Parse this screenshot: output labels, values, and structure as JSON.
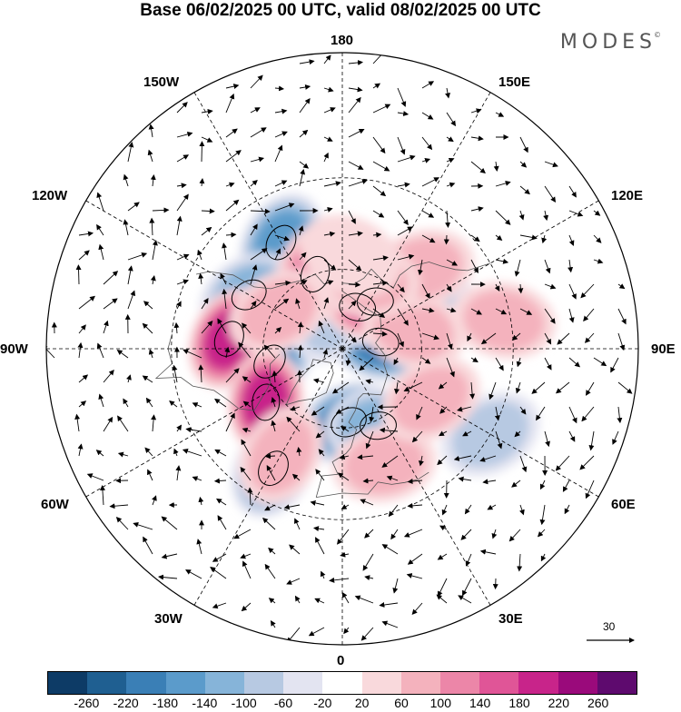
{
  "header": {
    "title": "Base 06/02/2025 00 UTC, valid 08/02/2025 00 UTC",
    "brand": "MODES",
    "brand_mark": "©"
  },
  "map": {
    "projection": "north-polar-stereographic",
    "longitude_labels": [
      "180",
      "150E",
      "120E",
      "90E",
      "60E",
      "30E",
      "0",
      "30W",
      "60W",
      "90W",
      "120W",
      "150W"
    ],
    "wind_reference": {
      "value": "30"
    }
  },
  "colorbar": {
    "colors": [
      "#0d3b66",
      "#1f5f91",
      "#3a7fb6",
      "#5b9bcb",
      "#86b4d9",
      "#b7c9e2",
      "#e3e4f1",
      "#ffffff",
      "#f9d9dc",
      "#f4b2bd",
      "#ec86a8",
      "#e05597",
      "#c8248a",
      "#9a0a7b",
      "#5e0a6e"
    ],
    "tick_labels": [
      "-260",
      "-220",
      "-180",
      "-140",
      "-100",
      "-60",
      "-20",
      "20",
      "60",
      "100",
      "140",
      "180",
      "220",
      "260"
    ],
    "palette": {
      "negative": "#3a7fb6",
      "positive": "#e05597",
      "neutral": "#ffffff"
    }
  },
  "chart_data": {
    "type": "heatmap",
    "title": "Base 06/02/2025 00 UTC, valid 08/02/2025 00 UTC",
    "levels": [
      -260,
      -220,
      -180,
      -140,
      -100,
      -60,
      -20,
      20,
      60,
      100,
      140,
      180,
      220,
      260
    ],
    "positive_centers": [
      {
        "lon": -95,
        "lat": 48,
        "value": 200
      },
      {
        "lon": -55,
        "lat": 55,
        "value": 200
      },
      {
        "lon": 145,
        "lat": 68,
        "value": 140
      },
      {
        "lon": -160,
        "lat": 60,
        "value": 100
      },
      {
        "lon": 105,
        "lat": 62,
        "value": 60
      },
      {
        "lon": 135,
        "lat": 48,
        "value": 60
      },
      {
        "lon": 20,
        "lat": 45,
        "value": 60
      },
      {
        "lon": -30,
        "lat": 45,
        "value": 60
      },
      {
        "lon": 60,
        "lat": 52,
        "value": 60
      },
      {
        "lon": 160,
        "lat": 62,
        "value": 60
      },
      {
        "lon": 175,
        "lat": 55,
        "value": 20
      },
      {
        "lon": -120,
        "lat": 62,
        "value": 60
      },
      {
        "lon": 100,
        "lat": 32,
        "value": 60
      }
    ],
    "negative_centers": [
      {
        "lon": -150,
        "lat": 45,
        "value": -140
      },
      {
        "lon": -80,
        "lat": 62,
        "value": -140
      },
      {
        "lon": -30,
        "lat": 40,
        "value": -140
      },
      {
        "lon": 5,
        "lat": 62,
        "value": -180
      },
      {
        "lon": 100,
        "lat": 75,
        "value": -180
      },
      {
        "lon": 160,
        "lat": 73,
        "value": -100
      },
      {
        "lon": -120,
        "lat": 50,
        "value": -100
      },
      {
        "lon": 25,
        "lat": 58,
        "value": -100
      },
      {
        "lon": 125,
        "lat": 55,
        "value": -60
      },
      {
        "lon": 60,
        "lat": 30,
        "value": -60
      },
      {
        "lon": -160,
        "lat": 75,
        "value": -60
      }
    ]
  }
}
